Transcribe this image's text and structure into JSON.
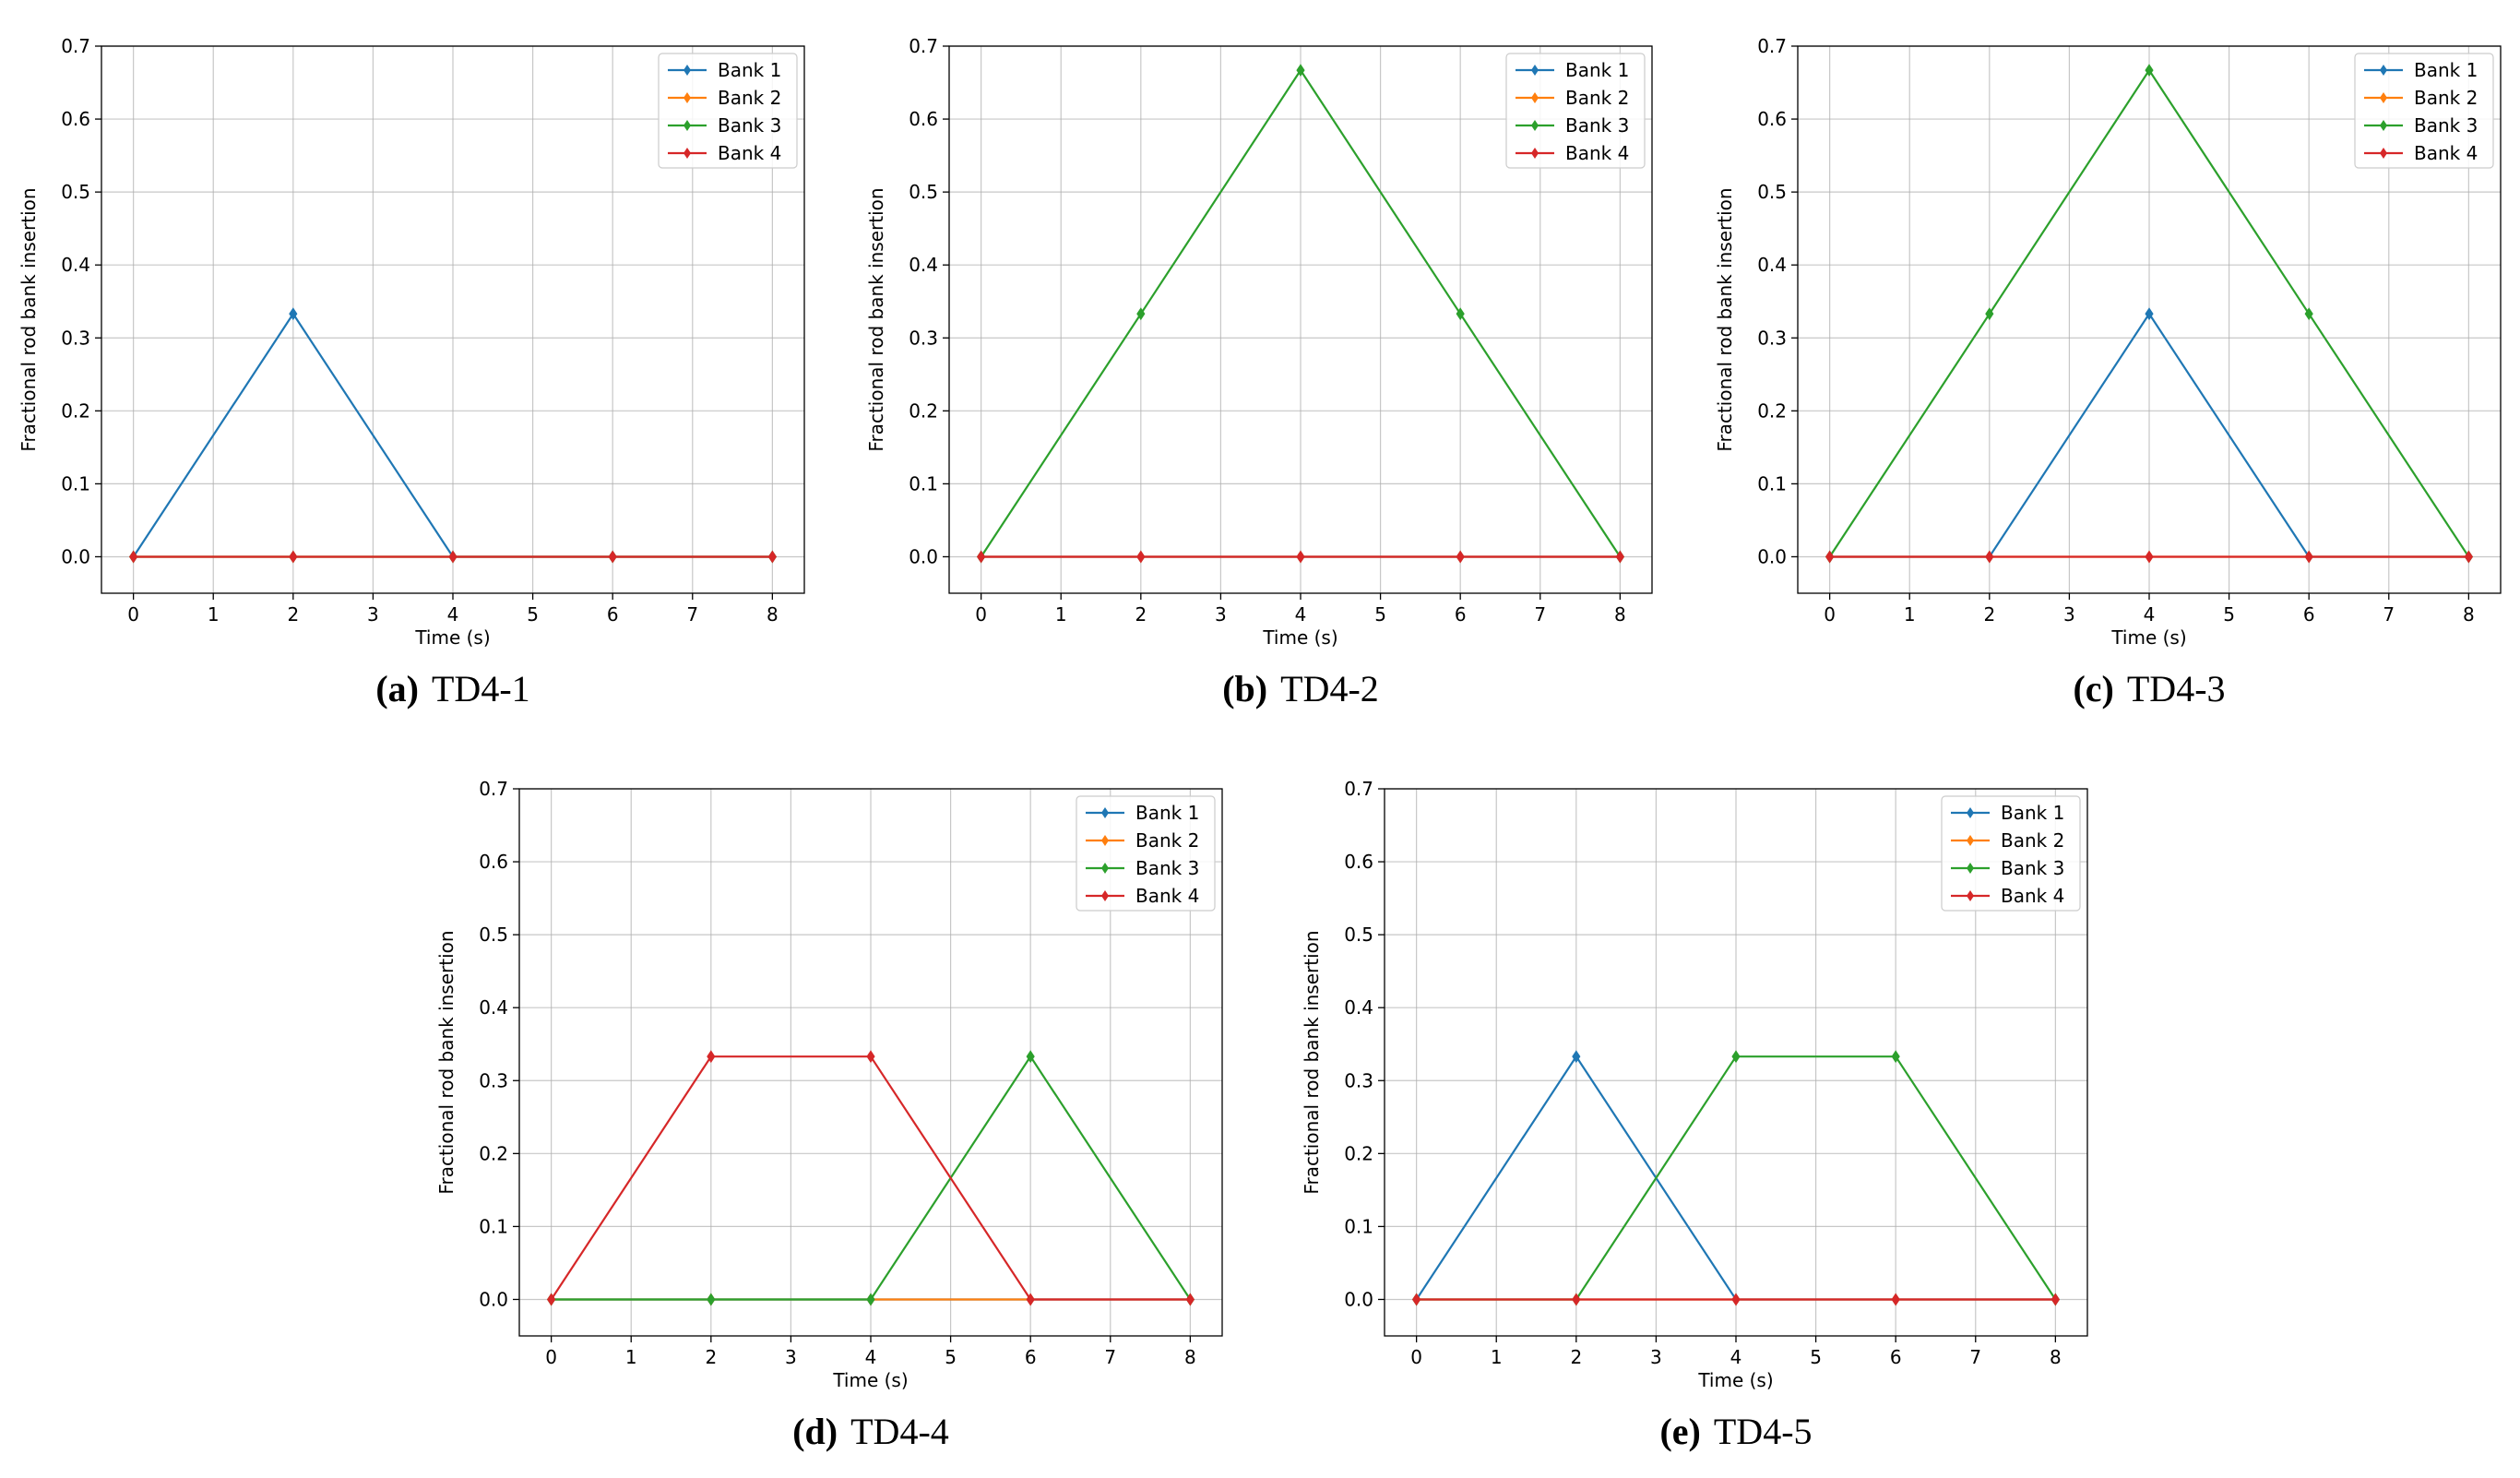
{
  "colors": {
    "Bank 1": "#1f77b4",
    "Bank 2": "#ff7f0e",
    "Bank 3": "#2ca02c",
    "Bank 4": "#d62728"
  },
  "chart_data": [
    {
      "type": "line",
      "panel": "(a)",
      "caption": "TD4-1",
      "xlabel": "Time (s)",
      "ylabel": "Fractional rod bank insertion",
      "xlim": [
        -0.4,
        8.4
      ],
      "ylim": [
        -0.05,
        0.7
      ],
      "grid": true,
      "legend": "top-right",
      "x": [
        0,
        2,
        4,
        6,
        8
      ],
      "xticks": [
        "0",
        "1",
        "2",
        "3",
        "4",
        "5",
        "6",
        "7",
        "8"
      ],
      "yticks": [
        "0.0",
        "0.1",
        "0.2",
        "0.3",
        "0.4",
        "0.5",
        "0.6",
        "0.7"
      ],
      "series": [
        {
          "name": "Bank 1",
          "values": [
            0,
            0.333,
            0,
            0,
            0
          ]
        },
        {
          "name": "Bank 2",
          "values": [
            0,
            0,
            0,
            0,
            0
          ]
        },
        {
          "name": "Bank 3",
          "values": [
            0,
            0,
            0,
            0,
            0
          ]
        },
        {
          "name": "Bank 4",
          "values": [
            0,
            0,
            0,
            0,
            0
          ]
        }
      ]
    },
    {
      "type": "line",
      "panel": "(b)",
      "caption": "TD4-2",
      "xlabel": "Time (s)",
      "ylabel": "Fractional rod bank insertion",
      "xlim": [
        -0.4,
        8.4
      ],
      "ylim": [
        -0.05,
        0.7
      ],
      "grid": true,
      "legend": "top-right",
      "x": [
        0,
        2,
        4,
        6,
        8
      ],
      "xticks": [
        "0",
        "1",
        "2",
        "3",
        "4",
        "5",
        "6",
        "7",
        "8"
      ],
      "yticks": [
        "0.0",
        "0.1",
        "0.2",
        "0.3",
        "0.4",
        "0.5",
        "0.6",
        "0.7"
      ],
      "series": [
        {
          "name": "Bank 1",
          "values": [
            0,
            0,
            0,
            0,
            0
          ]
        },
        {
          "name": "Bank 2",
          "values": [
            0,
            0,
            0,
            0,
            0
          ]
        },
        {
          "name": "Bank 3",
          "values": [
            0,
            0.333,
            0.667,
            0.333,
            0
          ]
        },
        {
          "name": "Bank 4",
          "values": [
            0,
            0,
            0,
            0,
            0
          ]
        }
      ]
    },
    {
      "type": "line",
      "panel": "(c)",
      "caption": "TD4-3",
      "xlabel": "Time (s)",
      "ylabel": "Fractional rod bank insertion",
      "xlim": [
        -0.4,
        8.4
      ],
      "ylim": [
        -0.05,
        0.7
      ],
      "grid": true,
      "legend": "top-right",
      "x": [
        0,
        2,
        4,
        6,
        8
      ],
      "xticks": [
        "0",
        "1",
        "2",
        "3",
        "4",
        "5",
        "6",
        "7",
        "8"
      ],
      "yticks": [
        "0.0",
        "0.1",
        "0.2",
        "0.3",
        "0.4",
        "0.5",
        "0.6",
        "0.7"
      ],
      "series": [
        {
          "name": "Bank 1",
          "values": [
            0,
            0,
            0.333,
            0,
            0
          ]
        },
        {
          "name": "Bank 2",
          "values": [
            0,
            0,
            0,
            0,
            0
          ]
        },
        {
          "name": "Bank 3",
          "values": [
            0,
            0.333,
            0.667,
            0.333,
            0
          ]
        },
        {
          "name": "Bank 4",
          "values": [
            0,
            0,
            0,
            0,
            0
          ]
        }
      ]
    },
    {
      "type": "line",
      "panel": "(d)",
      "caption": "TD4-4",
      "xlabel": "Time (s)",
      "ylabel": "Fractional rod bank insertion",
      "xlim": [
        -0.4,
        8.4
      ],
      "ylim": [
        -0.05,
        0.7
      ],
      "grid": true,
      "legend": "top-right",
      "x": [
        0,
        2,
        4,
        6,
        8
      ],
      "xticks": [
        "0",
        "1",
        "2",
        "3",
        "4",
        "5",
        "6",
        "7",
        "8"
      ],
      "yticks": [
        "0.0",
        "0.1",
        "0.2",
        "0.3",
        "0.4",
        "0.5",
        "0.6",
        "0.7"
      ],
      "series": [
        {
          "name": "Bank 1",
          "values": [
            0,
            0,
            0,
            0,
            0
          ]
        },
        {
          "name": "Bank 2",
          "values": [
            0,
            0,
            0,
            0,
            0
          ]
        },
        {
          "name": "Bank 3",
          "values": [
            0,
            0,
            0,
            0.333,
            0
          ]
        },
        {
          "name": "Bank 4",
          "values": [
            0,
            0.333,
            0.333,
            0,
            0
          ]
        }
      ]
    },
    {
      "type": "line",
      "panel": "(e)",
      "caption": "TD4-5",
      "xlabel": "Time (s)",
      "ylabel": "Fractional rod bank insertion",
      "xlim": [
        -0.4,
        8.4
      ],
      "ylim": [
        -0.05,
        0.7
      ],
      "grid": true,
      "legend": "top-right",
      "x": [
        0,
        2,
        4,
        6,
        8
      ],
      "xticks": [
        "0",
        "1",
        "2",
        "3",
        "4",
        "5",
        "6",
        "7",
        "8"
      ],
      "yticks": [
        "0.0",
        "0.1",
        "0.2",
        "0.3",
        "0.4",
        "0.5",
        "0.6",
        "0.7"
      ],
      "series": [
        {
          "name": "Bank 1",
          "values": [
            0,
            0.333,
            0,
            0,
            0
          ]
        },
        {
          "name": "Bank 2",
          "values": [
            0,
            0,
            0,
            0,
            0
          ]
        },
        {
          "name": "Bank 3",
          "values": [
            0,
            0,
            0.333,
            0.333,
            0
          ]
        },
        {
          "name": "Bank 4",
          "values": [
            0,
            0,
            0,
            0,
            0
          ]
        }
      ]
    }
  ]
}
